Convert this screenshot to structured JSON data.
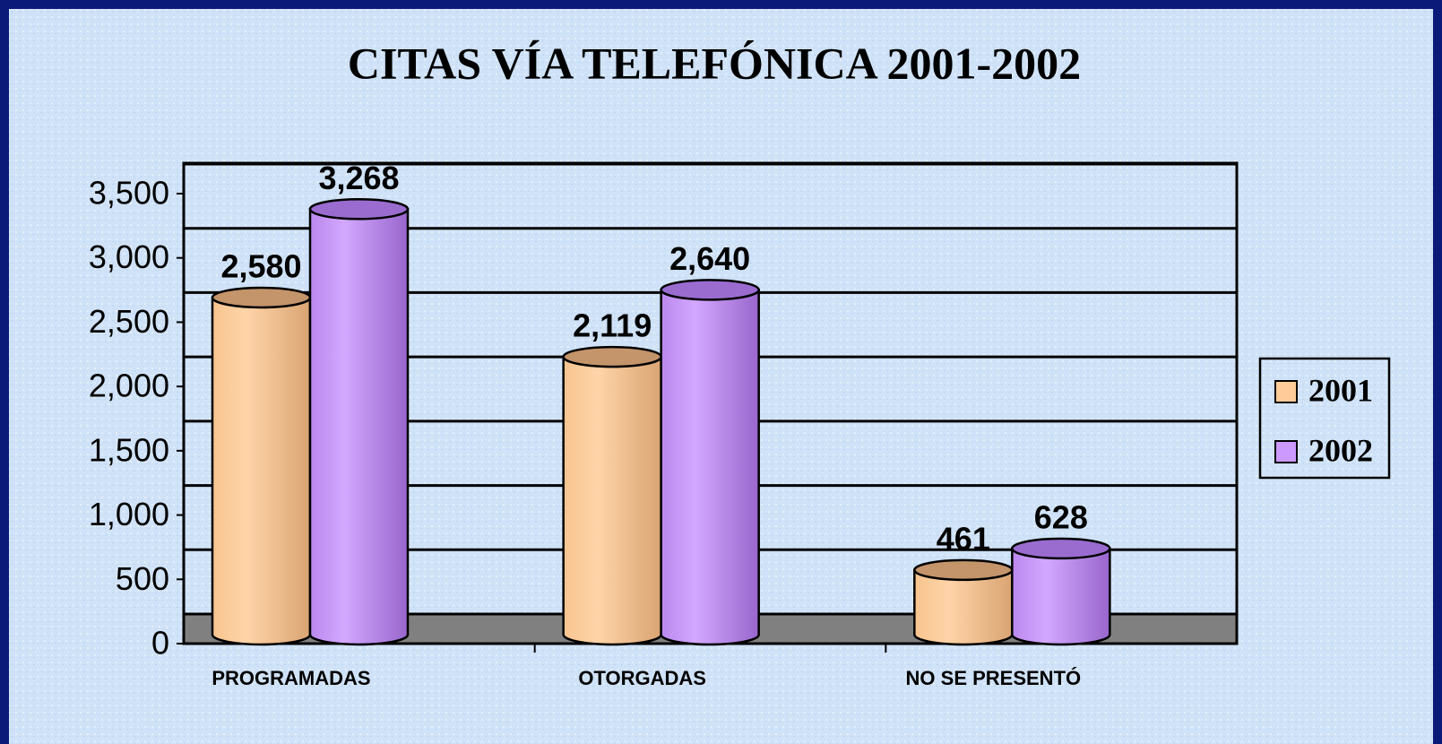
{
  "chart_data": {
    "type": "bar",
    "title": "CITAS VÍA TELEFÓNICA 2001-2002",
    "categories": [
      "PROGRAMADAS",
      "OTORGADAS",
      "NO SE PRESENTÓ"
    ],
    "series": [
      {
        "name": "2001",
        "color": "#ffcc99",
        "values": [
          2580,
          2119,
          461
        ],
        "value_labels": [
          "2,580",
          "2,119",
          "461"
        ]
      },
      {
        "name": "2002",
        "color": "#cc99ff",
        "values": [
          3268,
          2640,
          628
        ],
        "value_labels": [
          "3,268",
          "2,640",
          "628"
        ]
      }
    ],
    "ylim": [
      0,
      3750
    ],
    "yticks": [
      0,
      500,
      {
        "value": 1000,
        "label": "1,000"
      },
      {
        "value": 1500,
        "label": "1,500"
      },
      {
        "value": 2000,
        "label": "2,000"
      },
      {
        "value": 2500,
        "label": "2,500"
      },
      {
        "value": 3000,
        "label": "3,000"
      },
      {
        "value": 3500,
        "label": "3,500"
      }
    ],
    "grid": true,
    "legend": "right"
  }
}
